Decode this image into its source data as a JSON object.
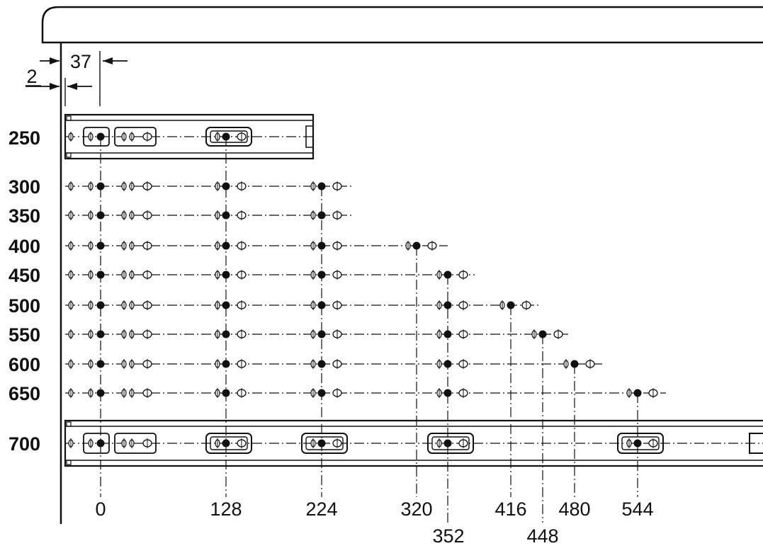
{
  "diagram": {
    "dimension_top": "37",
    "dimension_side": "2",
    "rows": [
      "250",
      "300",
      "350",
      "400",
      "450",
      "500",
      "550",
      "600",
      "650",
      "700"
    ],
    "positions": [
      "0",
      "128",
      "224",
      "320",
      "352",
      "416",
      "448",
      "480",
      "544"
    ],
    "row_holes": {
      "250": [
        "0",
        "128"
      ],
      "300": [
        "0",
        "128",
        "224"
      ],
      "350": [
        "0",
        "128",
        "224"
      ],
      "400": [
        "0",
        "128",
        "224",
        "320"
      ],
      "450": [
        "0",
        "128",
        "224",
        "352"
      ],
      "500": [
        "0",
        "128",
        "224",
        "352",
        "416"
      ],
      "550": [
        "0",
        "128",
        "224",
        "352",
        "448"
      ],
      "600": [
        "0",
        "128",
        "224",
        "352",
        "480"
      ],
      "650": [
        "0",
        "128",
        "224",
        "352",
        "544"
      ],
      "700": [
        "0",
        "128",
        "224",
        "352",
        "544"
      ]
    },
    "colors": {
      "ink": "#111111",
      "background": "#ffffff"
    }
  }
}
